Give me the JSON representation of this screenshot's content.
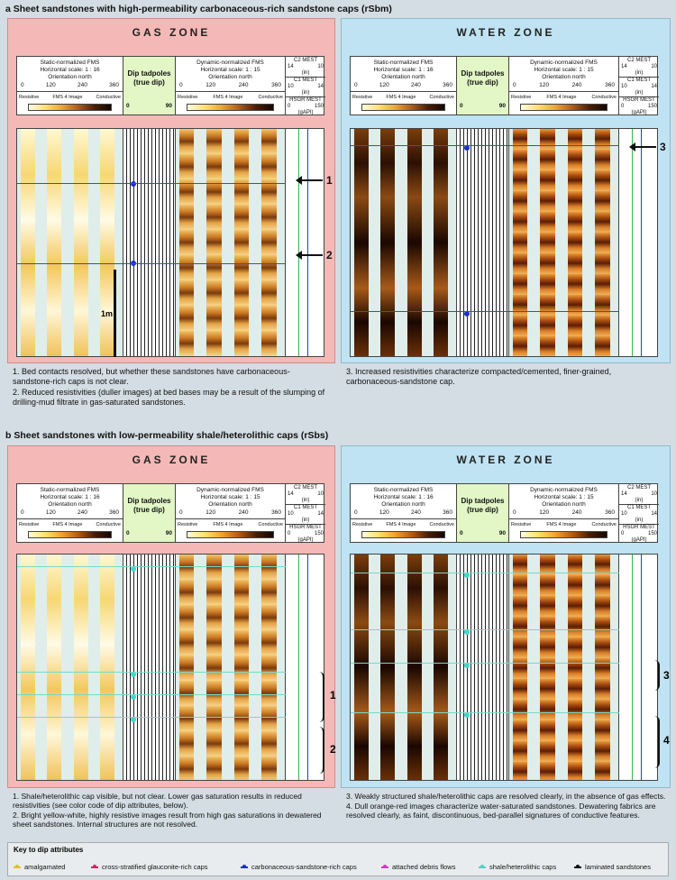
{
  "section_a": {
    "title": "a  Sheet sandstones with high-permeability carbonaceous-rich sandstone caps (rSbm)"
  },
  "section_b": {
    "title": "b  Sheet sandstones with low-permeability shale/heterolithic caps (rSbs)"
  },
  "zones": {
    "gas": "GAS ZONE",
    "water": "WATER ZONE"
  },
  "header": {
    "static_title": "Static-normalized FMS",
    "static_scale_16": "Horizontal scale: 1 : 16",
    "orientation": "Orientation north",
    "dynamic_title": "Dynamic-normalized FMS",
    "dynamic_scale": "Horizontal scale: 1 : 15",
    "ticks": [
      "0",
      "120",
      "240",
      "360"
    ],
    "resistive": "Resistive",
    "conductive": "Conductive",
    "image_label": "FMS 4 Image",
    "dip_title": "Dip tadpoles (true dip)",
    "dip_min": "0",
    "dip_max": "90",
    "c2": "C2 MEST",
    "c2_range": [
      "14",
      "10"
    ],
    "inch": "(in)",
    "c1": "C1 MEST",
    "c1_range": [
      "10",
      "14"
    ],
    "hsgr": "HSGR MEST",
    "hsgr_range": [
      "0",
      "150"
    ],
    "gapi": "(gAPI)"
  },
  "scale_bar": "1m",
  "markers_a": {
    "m1": "1",
    "m2": "2",
    "m3": "3"
  },
  "markers_b": {
    "m1": "1",
    "m2": "2",
    "m3": "3",
    "m4": "4"
  },
  "notes_a_gas": [
    "1. Bed contacts resolved, but whether these sandstones have carbonaceous-sandstone-rich caps is not clear.",
    "2. Reduced resistivities (duller images) at bed bases may be a result of the slumping of drilling-mud filtrate in gas-saturated sandstones."
  ],
  "notes_a_water": [
    "3. Increased resistivities characterize compacted/cemented, finer-grained, carbonaceous-sandstone cap."
  ],
  "notes_b_gas": [
    "1. Shale/heterolithic cap visible, but not clear. Lower gas saturation results in reduced resistivities (see color code of dip attributes, below).",
    "2. Bright yellow-white, highly resistive images result from high gas saturations in dewatered sheet sandstones. Internal structures are not resolved."
  ],
  "notes_b_water": [
    "3. Weakly structured shale/heterolithic caps are resolved clearly, in the absence of gas effects.",
    "4. Dull orange-red images characterize water-saturated sandstones. Dewatering fabrics are resolved clearly, as faint, discontinuous, bed-parallel signatures of conductive features."
  ],
  "key": {
    "title": "Key to dip attributes",
    "items": [
      {
        "label": "amalgamated",
        "color": "#e2c400"
      },
      {
        "label": "cross-stratified glauconite-rich caps",
        "color": "#e0206a"
      },
      {
        "label": "carbonaceous-sandstone-rich caps",
        "color": "#1a2fd0"
      },
      {
        "label": "attached debris flows",
        "color": "#e030c8"
      },
      {
        "label": "shale/heterolithic caps",
        "color": "#40d8c8"
      },
      {
        "label": "laminated sandstones",
        "color": "#111111"
      }
    ]
  }
}
